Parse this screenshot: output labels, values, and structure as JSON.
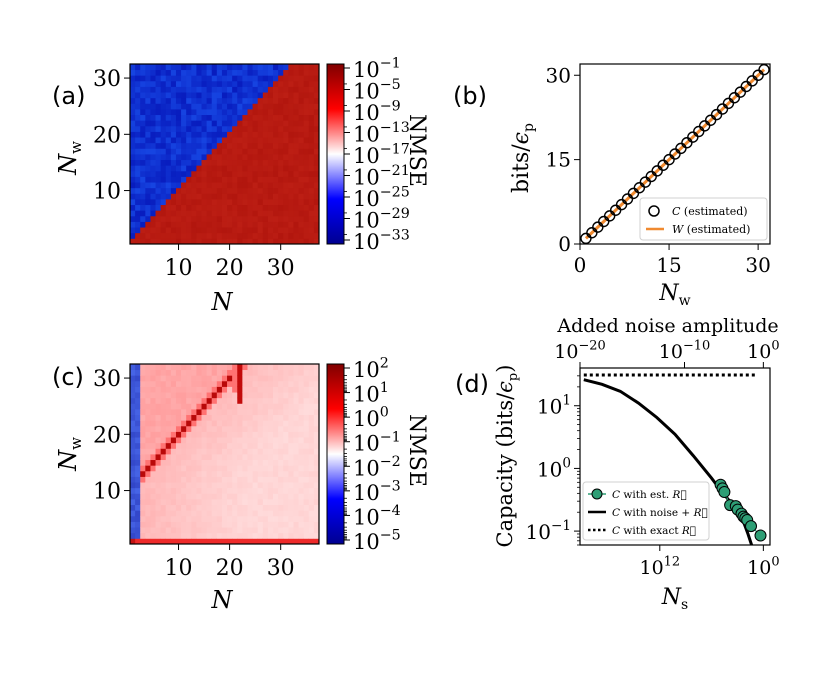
{
  "panels": {
    "a": {
      "label": "(a)"
    },
    "b": {
      "label": "(b)"
    },
    "c": {
      "label": "(c)"
    },
    "d": {
      "label": "(d)"
    }
  },
  "chart_data": [
    {
      "id": "a",
      "type": "heatmap",
      "xlabel": "N",
      "ylabel": "N_w",
      "x_range": [
        1,
        37
      ],
      "y_range": [
        1,
        32
      ],
      "xticks": [
        10,
        20,
        30
      ],
      "yticks": [
        10,
        20,
        30
      ],
      "xtick_labels": [
        "10",
        "20",
        "30"
      ],
      "ytick_labels": [
        "10",
        "20",
        "30"
      ],
      "colorbar": {
        "label": "NMSE",
        "scale": "log",
        "ticks": [
          "10^{-1}",
          "10^{-5}",
          "10^{-9}",
          "10^{-13}",
          "10^{-17}",
          "10^{-21}",
          "10^{-25}",
          "10^{-29}",
          "10^{-33}"
        ],
        "colors": [
          "#000090",
          "#0000ff",
          "#ffffff",
          "#ff0000",
          "#800000"
        ]
      },
      "regions": [
        {
          "condition": "N < N_w",
          "nmse": 1e-31,
          "color": "#0f28c8"
        },
        {
          "condition": "N >= N_w",
          "nmse": 0.01,
          "color": "#b81c0e"
        }
      ]
    },
    {
      "id": "b",
      "type": "scatter",
      "xlabel": "N_w",
      "ylabel": "bits/ε_p",
      "xlim": [
        0,
        32
      ],
      "ylim": [
        0,
        32
      ],
      "xticks": [
        0,
        15,
        30
      ],
      "yticks": [
        0,
        15,
        30
      ],
      "series": [
        {
          "name": "C (estimated)",
          "kind": "markers",
          "x": [
            1,
            2,
            3,
            4,
            5,
            6,
            7,
            8,
            9,
            10,
            11,
            12,
            13,
            14,
            15,
            16,
            17,
            18,
            19,
            20,
            21,
            22,
            23,
            24,
            25,
            26,
            27,
            28,
            29,
            30,
            31
          ],
          "y": [
            1,
            2,
            3,
            4,
            5,
            6,
            7,
            8,
            9,
            10,
            11,
            12,
            13,
            14,
            15,
            16,
            17,
            18,
            19,
            20,
            21,
            22,
            23,
            24,
            25,
            26,
            27,
            28,
            29,
            30,
            31
          ]
        },
        {
          "name": "W (estimated)",
          "kind": "line",
          "color": "#f08a30",
          "x": [
            1,
            31
          ],
          "y": [
            1,
            31
          ]
        }
      ],
      "legend": "bottom-right"
    },
    {
      "id": "c",
      "type": "heatmap",
      "xlabel": "N",
      "ylabel": "N_w",
      "x_range": [
        1,
        37
      ],
      "y_range": [
        1,
        32
      ],
      "xticks": [
        10,
        20,
        30
      ],
      "yticks": [
        10,
        20,
        30
      ],
      "xtick_labels": [
        "10",
        "20",
        "30"
      ],
      "ytick_labels": [
        "10",
        "20",
        "30"
      ],
      "colorbar": {
        "label": "NMSE",
        "scale": "log",
        "ticks": [
          "10^{2}",
          "10^{1}",
          "10^{0}",
          "10^{-1}",
          "10^{-2}",
          "10^{-3}",
          "10^{-4}",
          "10^{-5}"
        ],
        "colors": [
          "#000090",
          "#0000ff",
          "#ffffff",
          "#ff0000",
          "#800000"
        ]
      },
      "description": "NMSE high along diagonal N ≈ N_w - 10, blue for N ≤ 2"
    },
    {
      "id": "d",
      "type": "line",
      "xlabel": "N_s",
      "ylabel": "Capacity (bits/ε_p)",
      "top_xlabel": "Added noise amplitude",
      "xscale": "log",
      "yscale": "log",
      "xticks_bottom": [
        "10^{12}",
        "10^{0}"
      ],
      "xticks_top": [
        "10^{-20}",
        "10^{-10}",
        "10^{0}"
      ],
      "yticks": [
        "10^{-1}",
        "10^{0}",
        "10^{1}"
      ],
      "ylim": [
        0.06,
        40
      ],
      "series": [
        {
          "name": "C with est. R",
          "kind": "markers",
          "color": "#2e9e75",
          "x_frac": [
            0.74,
            0.75,
            0.76,
            0.79,
            0.82,
            0.83,
            0.85,
            0.86,
            0.87,
            0.88,
            0.9,
            0.95
          ],
          "y": [
            0.55,
            0.48,
            0.42,
            0.26,
            0.25,
            0.22,
            0.19,
            0.17,
            0.16,
            0.15,
            0.12,
            0.085
          ]
        },
        {
          "name": "C with noise + R",
          "kind": "line",
          "color": "#000000",
          "x_frac": [
            0.0,
            0.1,
            0.2,
            0.3,
            0.4,
            0.5,
            0.6,
            0.7,
            0.75,
            0.8,
            0.85,
            0.88,
            0.9,
            0.92
          ],
          "y": [
            26,
            22,
            17,
            11,
            6.5,
            3.5,
            1.6,
            0.7,
            0.45,
            0.3,
            0.2,
            0.13,
            0.09,
            0.06
          ]
        },
        {
          "name": "C with exact R",
          "kind": "dotted-line",
          "color": "#000000",
          "x_frac": [
            0.0,
            1.0
          ],
          "y": [
            31,
            31
          ]
        }
      ],
      "legend": "bottom-left"
    }
  ]
}
